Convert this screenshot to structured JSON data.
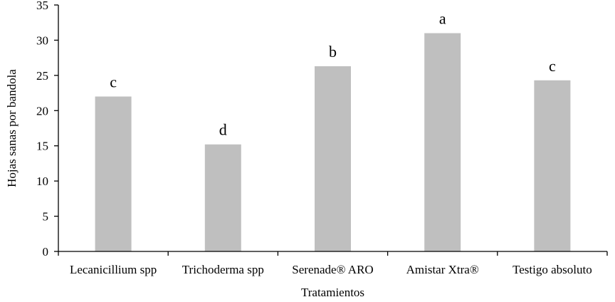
{
  "chart_data": {
    "type": "bar",
    "title": "",
    "xlabel": "Tratamientos",
    "ylabel": "Hojas sanas por bandola",
    "ylim": [
      0,
      35
    ],
    "yticks": [
      0,
      5,
      10,
      15,
      20,
      25,
      30,
      35
    ],
    "grid": false,
    "legend": "none",
    "categories": [
      "Lecanicillium spp",
      "Trichoderma spp",
      "Serenade® ARO",
      "Amistar Xtra®",
      "Testigo absoluto"
    ],
    "values": [
      22.0,
      15.2,
      26.3,
      31.0,
      24.3
    ],
    "bar_labels": [
      "c",
      "d",
      "b",
      "a",
      "c"
    ],
    "colors": {
      "bar": "#bfbfbf",
      "axis": "#000000"
    }
  }
}
